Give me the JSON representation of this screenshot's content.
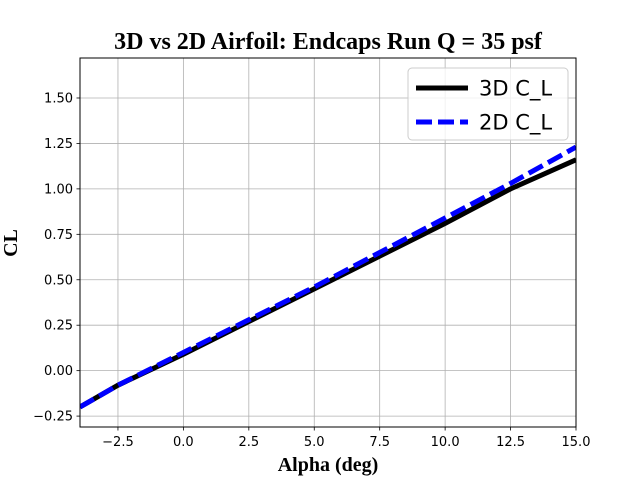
{
  "chart_data": {
    "type": "line",
    "title": "3D vs 2D Airfoil: Endcaps Run Q = 35 psf",
    "xlabel": "Alpha (deg)",
    "ylabel": "CL",
    "xlim": [
      -3.95,
      15.0
    ],
    "ylim": [
      -0.31,
      1.72
    ],
    "xticks": [
      -2.5,
      0.0,
      2.5,
      5.0,
      7.5,
      10.0,
      12.5,
      15.0
    ],
    "xtick_labels": [
      "−2.5",
      "0.0",
      "2.5",
      "5.0",
      "7.5",
      "10.0",
      "12.5",
      "15.0"
    ],
    "yticks": [
      -0.25,
      0.0,
      0.25,
      0.5,
      0.75,
      1.0,
      1.25,
      1.5
    ],
    "ytick_labels": [
      "−0.25",
      "0.00",
      "0.25",
      "0.50",
      "0.75",
      "1.00",
      "1.25",
      "1.50"
    ],
    "grid": true,
    "legend_position": "top-right",
    "series": [
      {
        "name": "3D C_L",
        "color": "#000000",
        "style": "solid",
        "x": [
          -3.95,
          -2.5,
          0.0,
          2.5,
          5.0,
          7.5,
          10.0,
          12.5,
          15.0
        ],
        "y": [
          -0.2,
          -0.08,
          0.09,
          0.27,
          0.45,
          0.63,
          0.81,
          1.0,
          1.16
        ]
      },
      {
        "name": "2D C_L",
        "color": "#0000ff",
        "style": "dashed",
        "x": [
          -3.95,
          -2.5,
          0.0,
          2.5,
          5.0,
          7.5,
          10.0,
          12.5,
          15.0
        ],
        "y": [
          -0.2,
          -0.08,
          0.1,
          0.28,
          0.46,
          0.65,
          0.84,
          1.03,
          1.23
        ]
      }
    ]
  }
}
